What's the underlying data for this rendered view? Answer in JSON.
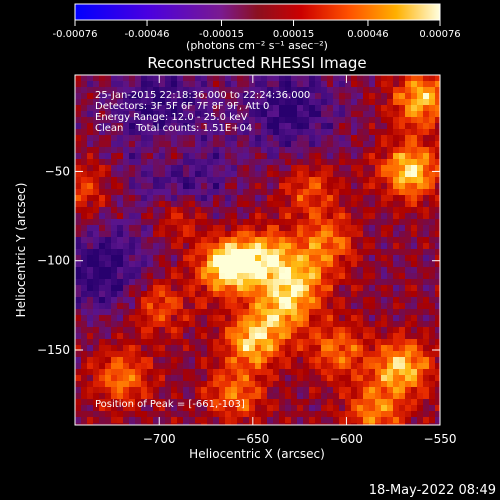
{
  "chart_data": {
    "type": "heatmap",
    "title": "Reconstructed RHESSI Image",
    "xlabel": "Heliocentric X (arcsec)",
    "ylabel": "Heliocentric Y (arcsec)",
    "xlim": [
      -745,
      -550
    ],
    "ylim": [
      -192,
      4
    ],
    "x_ticks": [
      -700,
      -650,
      -600,
      -550
    ],
    "y_ticks": [
      -50,
      -100,
      -150
    ],
    "colorbar": {
      "ticks": [
        "-0.00076",
        "-0.00046",
        "-0.00015",
        "0.00015",
        "0.00046",
        "0.00076"
      ],
      "tick_values": [
        -0.00076,
        -0.00046,
        -0.00015,
        0.00015,
        0.00046,
        0.00076
      ],
      "unit_label": "(photons cm⁻² s⁻¹ asec⁻²)",
      "colormap": "purple-blue to red to yellow-white"
    },
    "annotations": [
      "25-Jan-2015 22:18:36.000 to 22:24:36.000",
      "Detectors: 3F 5F 6F 7F 8F 9F, Att 0",
      "Energy Range: 12.0 - 25.0 keV",
      "Clean    Total counts: 1.51E+04"
    ],
    "peak_label": "Position of Peak = [-661,-103]",
    "peak": {
      "x": -661,
      "y": -103
    },
    "sources": [
      {
        "x": -663,
        "y": -103,
        "intensity": 1.0
      },
      {
        "x": -642,
        "y": -98,
        "intensity": 0.65
      },
      {
        "x": -650,
        "y": -145,
        "intensity": 0.7
      },
      {
        "x": -635,
        "y": -128,
        "intensity": 0.55
      },
      {
        "x": -625,
        "y": -112,
        "intensity": 0.55
      },
      {
        "x": -610,
        "y": -90,
        "intensity": 0.5
      },
      {
        "x": -690,
        "y": -75,
        "intensity": 0.45
      },
      {
        "x": -700,
        "y": -125,
        "intensity": 0.45
      },
      {
        "x": -720,
        "y": -165,
        "intensity": 0.55
      },
      {
        "x": -566,
        "y": -50,
        "intensity": 0.8
      },
      {
        "x": -560,
        "y": -10,
        "intensity": 0.7
      },
      {
        "x": -570,
        "y": -160,
        "intensity": 0.75
      },
      {
        "x": -585,
        "y": -185,
        "intensity": 0.55
      },
      {
        "x": -695,
        "y": -38,
        "intensity": 0.4
      },
      {
        "x": -620,
        "y": -60,
        "intensity": 0.4
      },
      {
        "x": -605,
        "y": -150,
        "intensity": 0.5
      },
      {
        "x": -740,
        "y": -60,
        "intensity": 0.35
      },
      {
        "x": -660,
        "y": -175,
        "intensity": 0.5
      }
    ],
    "negative_regions": [
      {
        "x": -700,
        "y": -15
      },
      {
        "x": -730,
        "y": -105
      },
      {
        "x": -690,
        "y": -55
      },
      {
        "x": -630,
        "y": -15
      }
    ]
  },
  "footer": {
    "timestamp": "18-May-2022 08:49"
  }
}
